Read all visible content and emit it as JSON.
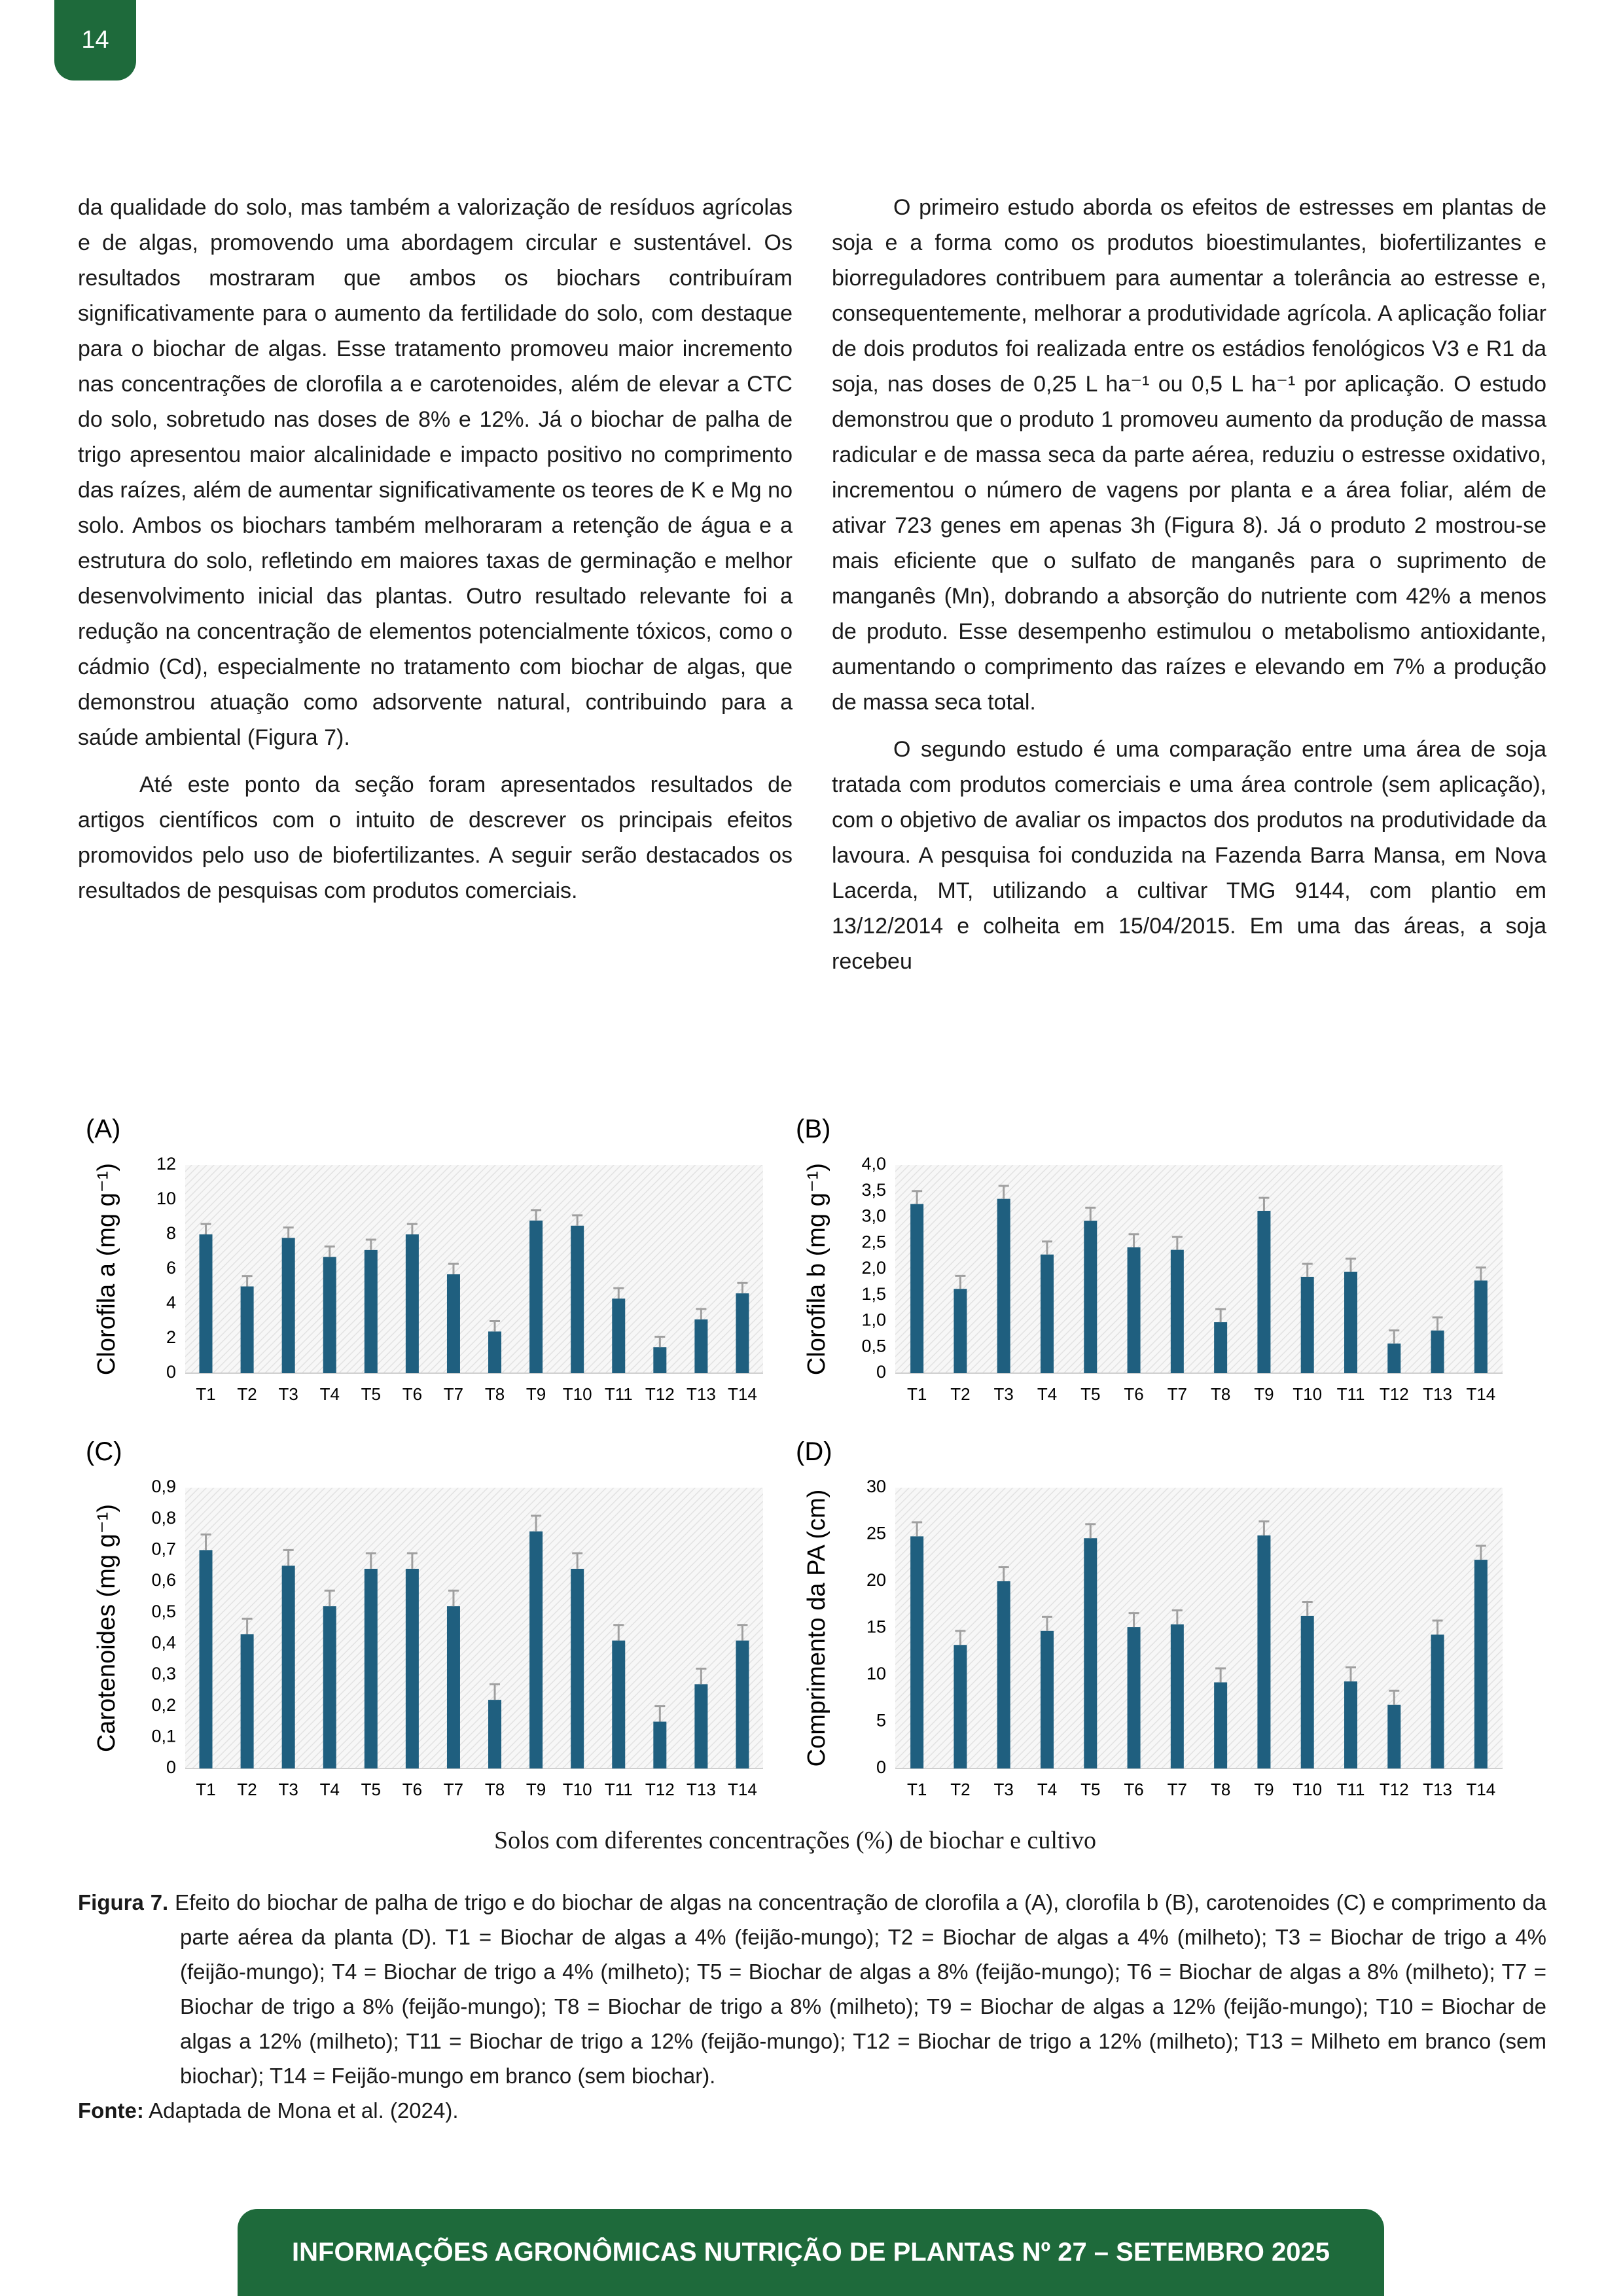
{
  "page_number": "14",
  "left_column": {
    "paragraphs": [
      "da qualidade do solo, mas também a valorização de resíduos agrícolas e de algas, promovendo uma abordagem circular e sustentável. Os resultados mostraram que ambos os biochars contribuíram significativamente para o aumento da fertilidade do solo, com destaque para o biochar de algas. Esse tratamento promoveu maior incremento nas concentrações de clorofila a e carotenoides, além de elevar a CTC do solo, sobretudo nas doses de 8% e 12%. Já o biochar de palha de trigo apresentou maior alcalinidade e impacto positivo no comprimento das raízes, além de aumentar significativamente os teores de K e Mg no solo. Ambos os biochars também melhoraram a retenção de água e a estrutura do solo, refletindo em maiores taxas de germinação e melhor desenvolvimento inicial das plantas. Outro resultado relevante foi a redução na concentração de elementos potencialmente tóxicos, como o cádmio (Cd), especialmente no tratamento com biochar de algas, que demonstrou atuação como adsorvente natural, contribuindo para a saúde ambiental (Figura 7).",
      "Até este ponto da seção foram apresentados resultados de artigos científicos com o intuito de descrever os principais efeitos promovidos pelo uso de biofertilizantes. A seguir serão destacados os resultados de pesquisas com produtos comerciais."
    ]
  },
  "right_column": {
    "paragraphs": [
      "O primeiro estudo aborda os efeitos de estresses em plantas de soja e a forma como os produtos bioestimulantes, biofertilizantes e biorreguladores contribuem para aumentar a tolerância ao estresse e, consequentemente, melhorar a produtividade agrícola. A aplicação foliar de dois produtos foi realizada entre os estádios fenológicos V3 e R1 da soja, nas doses de 0,25 L ha⁻¹ ou 0,5 L ha⁻¹ por aplicação. O estudo demonstrou que o produto 1 promoveu aumento da produção de massa radicular e de massa seca da parte aérea, reduziu o estresse oxidativo, incrementou o número de vagens por planta e a área foliar, além de ativar 723 genes em apenas 3h (Figura 8). Já o produto 2 mostrou-se mais eficiente que o sulfato de manganês para o suprimento de manganês (Mn), dobrando a absorção do nutriente com 42% a menos de produto. Esse desempenho estimulou o metabolismo antioxidante, aumentando o comprimento das raízes e elevando em 7% a produção de massa seca total.",
      "O segundo estudo é uma comparação entre uma área de soja tratada com produtos comerciais e uma área controle (sem aplicação), com o objetivo de avaliar os impactos dos produtos na produtividade da lavoura. A pesquisa foi conduzida na Fazenda Barra Mansa, em Nova Lacerda, MT, utilizando a cultivar TMG 9144, com plantio em 13/12/2014 e colheita em 15/04/2015. Em uma das áreas, a soja recebeu"
    ]
  },
  "chart_data": [
    {
      "type": "bar",
      "panel": "(A)",
      "y_label": "Clorofila a (mg g⁻¹)",
      "categories": [
        "T1",
        "T2",
        "T3",
        "T4",
        "T5",
        "T6",
        "T7",
        "T8",
        "T9",
        "T10",
        "T11",
        "T12",
        "T13",
        "T14"
      ],
      "values": [
        8.0,
        5.0,
        7.8,
        6.7,
        7.1,
        8.0,
        5.7,
        2.4,
        8.8,
        8.5,
        4.3,
        1.5,
        3.1,
        4.6
      ],
      "errors": [
        0.6,
        0.6,
        0.6,
        0.6,
        0.6,
        0.6,
        0.6,
        0.6,
        0.6,
        0.6,
        0.6,
        0.6,
        0.6,
        0.6
      ],
      "color": "#1f5f7f",
      "error_color": "#a0a0a0",
      "ylim": [
        0,
        12
      ],
      "yticks": [
        0,
        2,
        4,
        6,
        8,
        10,
        12
      ]
    },
    {
      "type": "bar",
      "panel": "(B)",
      "y_label": "Clorofila b (mg g⁻¹)",
      "categories": [
        "T1",
        "T2",
        "T3",
        "T4",
        "T5",
        "T6",
        "T7",
        "T8",
        "T9",
        "T10",
        "T11",
        "T12",
        "T13",
        "T14"
      ],
      "values": [
        3.25,
        1.62,
        3.35,
        2.28,
        2.93,
        2.42,
        2.37,
        0.98,
        3.12,
        1.85,
        1.95,
        0.57,
        0.82,
        1.78
      ],
      "errors": [
        0.25,
        0.25,
        0.25,
        0.25,
        0.25,
        0.25,
        0.25,
        0.25,
        0.25,
        0.25,
        0.25,
        0.25,
        0.25,
        0.25
      ],
      "color": "#1f5f7f",
      "error_color": "#a0a0a0",
      "ylim": [
        0,
        4
      ],
      "yticks": [
        0,
        {
          "value": 0.5,
          "label": "0,5"
        },
        {
          "value": 1,
          "label": "1,0"
        },
        {
          "value": 1.5,
          "label": "1,5"
        },
        {
          "value": 2,
          "label": "2,0"
        },
        {
          "value": 2.5,
          "label": "2,5"
        },
        {
          "value": 3,
          "label": "3,0"
        },
        {
          "value": 3.5,
          "label": "3,5"
        },
        {
          "value": 4,
          "label": "4,0"
        }
      ]
    },
    {
      "type": "bar",
      "panel": "(C)",
      "y_label": "Carotenoides (mg g⁻¹)",
      "categories": [
        "T1",
        "T2",
        "T3",
        "T4",
        "T5",
        "T6",
        "T7",
        "T8",
        "T9",
        "T10",
        "T11",
        "T12",
        "T13",
        "T14"
      ],
      "values": [
        0.7,
        0.43,
        0.65,
        0.52,
        0.64,
        0.64,
        0.52,
        0.22,
        0.76,
        0.64,
        0.41,
        0.15,
        0.27,
        0.41
      ],
      "errors": [
        0.05,
        0.05,
        0.05,
        0.05,
        0.05,
        0.05,
        0.05,
        0.05,
        0.05,
        0.05,
        0.05,
        0.05,
        0.05,
        0.05
      ],
      "color": "#1f5f7f",
      "error_color": "#a0a0a0",
      "ylim": [
        0,
        0.9
      ],
      "yticks": [
        0,
        {
          "value": 0.1,
          "label": "0,1"
        },
        {
          "value": 0.2,
          "label": "0,2"
        },
        {
          "value": 0.3,
          "label": "0,3"
        },
        {
          "value": 0.4,
          "label": "0,4"
        },
        {
          "value": 0.5,
          "label": "0,5"
        },
        {
          "value": 0.6,
          "label": "0,6"
        },
        {
          "value": 0.7,
          "label": "0,7"
        },
        {
          "value": 0.8,
          "label": "0,8"
        },
        {
          "value": 0.9,
          "label": "0,9"
        }
      ]
    },
    {
      "type": "bar",
      "panel": "(D)",
      "y_label": "Comprimento da PA (cm)",
      "categories": [
        "T1",
        "T2",
        "T3",
        "T4",
        "T5",
        "T6",
        "T7",
        "T8",
        "T9",
        "T10",
        "T11",
        "T12",
        "T13",
        "T14"
      ],
      "values": [
        24.8,
        13.2,
        20.0,
        14.7,
        24.6,
        15.1,
        15.4,
        9.2,
        24.9,
        16.3,
        9.3,
        6.8,
        14.3,
        22.3
      ],
      "errors": [
        1.5,
        1.5,
        1.5,
        1.5,
        1.5,
        1.5,
        1.5,
        1.5,
        1.5,
        1.5,
        1.5,
        1.5,
        1.5,
        1.5
      ],
      "color": "#1f5f7f",
      "error_color": "#a0a0a0",
      "ylim": [
        0,
        30
      ],
      "yticks": [
        0,
        5,
        10,
        15,
        20,
        25,
        30
      ]
    }
  ],
  "figure": {
    "x_label": "Solos com diferentes concentrações (%) de biochar e cultivo",
    "caption": {
      "label": "Figura 7.",
      "text": "Efeito do biochar de palha de trigo e do biochar de algas na concentração de clorofila a (A), clorofila b (B), carotenoides (C) e comprimento da parte aérea da planta (D). T1 = Biochar de algas a 4% (feijão-mungo); T2 = Biochar de algas a 4% (milheto); T3 = Biochar de trigo a 4% (feijão-mungo); T4 = Biochar de trigo a 4% (milheto); T5 = Biochar de algas a 8% (feijão-mungo); T6 = Biochar de algas a 8% (milheto); T7 = Biochar de trigo a 8% (feijão-mungo); T8 = Biochar de trigo a 8% (milheto); T9 = Biochar de algas a 12% (feijão-mungo); T10 = Biochar de algas a 12% (milheto); T11 = Biochar de trigo a 12% (feijão-mungo); T12 = Biochar de trigo a 12% (milheto); T13 = Milheto em branco (sem biochar); T14 = Feijão-mungo em branco (sem biochar)."
    },
    "source": {
      "label": "Fonte:",
      "text": "Adaptada de Mona et al. (2024)."
    }
  },
  "footer": "INFORMAÇÕES AGRONÔMICAS NUTRIÇÃO DE PLANTAS Nº 27 – SETEMBRO 2025"
}
